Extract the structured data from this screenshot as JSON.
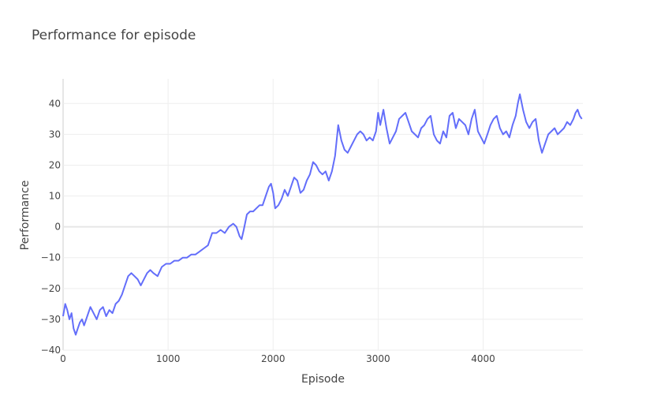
{
  "chart_data": {
    "type": "line",
    "title": "Performance for episode",
    "xlabel": "Episode",
    "ylabel": "Performance",
    "xlim": [
      0,
      4950
    ],
    "ylim": [
      -40,
      48
    ],
    "x_ticks": [
      0,
      1000,
      2000,
      3000,
      4000
    ],
    "y_ticks": [
      -40,
      -30,
      -20,
      -10,
      0,
      10,
      20,
      30,
      40
    ],
    "y_tick_labels": [
      "−40",
      "−30",
      "−20",
      "−10",
      "0",
      "10",
      "20",
      "30",
      "40"
    ],
    "grid": true,
    "colors": {
      "series": "#636efa",
      "grid": "#eeeeee",
      "zeroline": "#e6e6e6",
      "text": "#444444"
    },
    "series": [
      {
        "x": [
          0,
          20,
          40,
          60,
          80,
          100,
          120,
          140,
          160,
          180,
          200,
          230,
          260,
          290,
          320,
          350,
          380,
          410,
          440,
          470,
          500,
          530,
          560,
          590,
          620,
          650,
          680,
          710,
          740,
          770,
          800,
          830,
          860,
          900,
          940,
          980,
          1020,
          1060,
          1100,
          1140,
          1180,
          1220,
          1260,
          1300,
          1340,
          1380,
          1420,
          1460,
          1500,
          1540,
          1580,
          1620,
          1650,
          1680,
          1700,
          1720,
          1750,
          1780,
          1810,
          1840,
          1870,
          1900,
          1930,
          1960,
          1980,
          2000,
          2020,
          2050,
          2080,
          2110,
          2140,
          2170,
          2200,
          2230,
          2260,
          2290,
          2320,
          2350,
          2380,
          2410,
          2440,
          2470,
          2500,
          2530,
          2560,
          2590,
          2620,
          2650,
          2680,
          2710,
          2740,
          2770,
          2800,
          2830,
          2860,
          2890,
          2920,
          2950,
          2980,
          3000,
          3020,
          3050,
          3080,
          3110,
          3140,
          3170,
          3200,
          3230,
          3260,
          3290,
          3320,
          3350,
          3380,
          3410,
          3440,
          3470,
          3500,
          3530,
          3560,
          3590,
          3620,
          3650,
          3680,
          3710,
          3740,
          3770,
          3800,
          3830,
          3860,
          3890,
          3920,
          3950,
          3980,
          4010,
          4040,
          4070,
          4100,
          4130,
          4160,
          4190,
          4220,
          4250,
          4280,
          4310,
          4330,
          4350,
          4380,
          4410,
          4440,
          4470,
          4500,
          4530,
          4560,
          4590,
          4620,
          4650,
          4680,
          4710,
          4740,
          4770,
          4800,
          4830,
          4860,
          4880,
          4900,
          4920,
          4940
        ],
        "y": [
          -29,
          -25,
          -27,
          -30,
          -28,
          -33,
          -35,
          -33,
          -31,
          -30,
          -32,
          -29,
          -26,
          -28,
          -30,
          -27,
          -26,
          -29,
          -27,
          -28,
          -25,
          -24,
          -22,
          -19,
          -16,
          -15,
          -16,
          -17,
          -19,
          -17,
          -15,
          -14,
          -15,
          -16,
          -13,
          -12,
          -12,
          -11,
          -11,
          -10,
          -10,
          -9,
          -9,
          -8,
          -7,
          -6,
          -2,
          -2,
          -1,
          -2,
          0,
          1,
          0,
          -3,
          -4,
          -1,
          4,
          5,
          5,
          6,
          7,
          7,
          10,
          13,
          14,
          11,
          6,
          7,
          9,
          12,
          10,
          13,
          16,
          15,
          11,
          12,
          15,
          17,
          21,
          20,
          18,
          17,
          18,
          15,
          18,
          23,
          33,
          28,
          25,
          24,
          26,
          28,
          30,
          31,
          30,
          28,
          29,
          28,
          31,
          37,
          33,
          38,
          32,
          27,
          29,
          31,
          35,
          36,
          37,
          34,
          31,
          30,
          29,
          32,
          33,
          35,
          36,
          30,
          28,
          27,
          31,
          29,
          36,
          37,
          32,
          35,
          34,
          33,
          30,
          35,
          38,
          31,
          29,
          27,
          30,
          33,
          35,
          36,
          32,
          30,
          31,
          29,
          33,
          36,
          40,
          43,
          38,
          34,
          32,
          34,
          35,
          28,
          24,
          27,
          30,
          31,
          32,
          30,
          31,
          32,
          34,
          33,
          35,
          37,
          38,
          36,
          35
        ]
      }
    ]
  }
}
